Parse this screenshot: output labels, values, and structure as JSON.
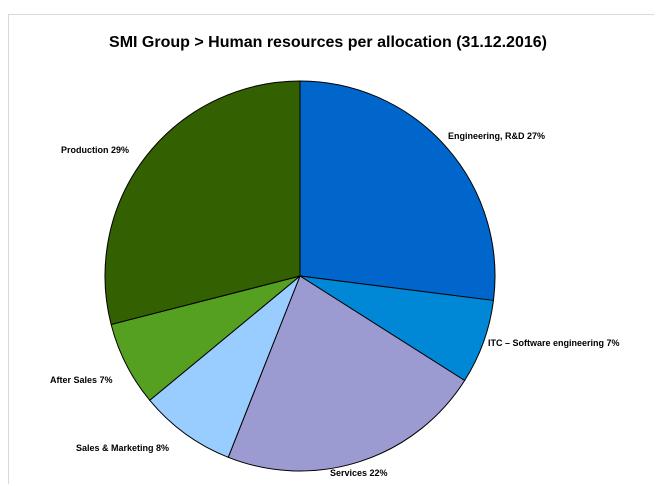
{
  "chart_data": {
    "type": "pie",
    "title": "SMI  Group > Human resources per allocation (31.12.2016)",
    "start_angle_deg": 0,
    "direction": "clockwise",
    "slices": [
      {
        "label": "Engineering, R&D 27%",
        "name": "Engineering, R&D",
        "value": 27,
        "color": "#0066cc"
      },
      {
        "label": "ITC – Software engineering 7%",
        "name": "ITC – Software engineering",
        "value": 7,
        "color": "#0088d6"
      },
      {
        "label": "Services 22%",
        "name": "Services",
        "value": 22,
        "color": "#9b9bd1"
      },
      {
        "label": "Sales & Marketing 8%",
        "name": "Sales & Marketing",
        "value": 8,
        "color": "#99ccff"
      },
      {
        "label": "After Sales 7%",
        "name": "After Sales",
        "value": 7,
        "color": "#55a020"
      },
      {
        "label": "Production 29%",
        "name": "Production",
        "value": 29,
        "color": "#336000"
      }
    ]
  }
}
